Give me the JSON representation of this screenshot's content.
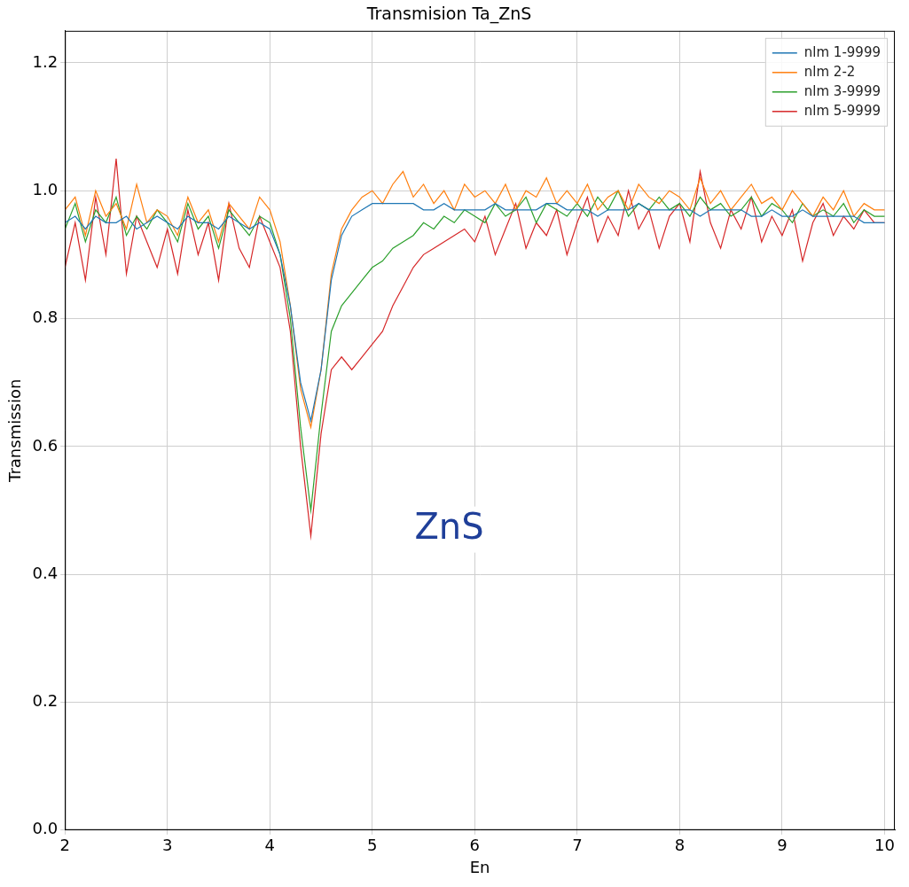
{
  "chart_data": {
    "type": "line",
    "title": "Transmision Ta_ZnS",
    "x_label": "En",
    "y_label": "Transmission",
    "xlim": [
      2,
      10.1
    ],
    "xticks": [
      2,
      3,
      4,
      5,
      6,
      7,
      8,
      9,
      10
    ],
    "ylim": [
      0,
      1.25
    ],
    "yticks": [
      {
        "value": 0,
        "label": "0.0"
      },
      0.2,
      0.4,
      0.6,
      0.8,
      {
        "value": 1,
        "label": "1.0"
      },
      1.2
    ],
    "grid": true,
    "legend": "upper right",
    "annotations": [
      {
        "text": "ZnS",
        "x": 5.75,
        "y": 0.47
      }
    ],
    "x": [
      2.0,
      2.1,
      2.2,
      2.3,
      2.4,
      2.5,
      2.6,
      2.7,
      2.8,
      2.9,
      3.0,
      3.1,
      3.2,
      3.3,
      3.4,
      3.5,
      3.6,
      3.7,
      3.8,
      3.9,
      4.0,
      4.1,
      4.2,
      4.3,
      4.4,
      4.5,
      4.6,
      4.7,
      4.8,
      4.9,
      5.0,
      5.1,
      5.2,
      5.3,
      5.4,
      5.5,
      5.6,
      5.7,
      5.8,
      5.9,
      6.0,
      6.1,
      6.2,
      6.3,
      6.4,
      6.5,
      6.6,
      6.7,
      6.8,
      6.9,
      7.0,
      7.1,
      7.2,
      7.3,
      7.4,
      7.5,
      7.6,
      7.7,
      7.8,
      7.9,
      8.0,
      8.1,
      8.2,
      8.3,
      8.4,
      8.5,
      8.6,
      8.7,
      8.8,
      8.9,
      9.0,
      9.1,
      9.2,
      9.3,
      9.4,
      9.5,
      9.6,
      9.7,
      9.8,
      9.9,
      10.0
    ],
    "series": [
      {
        "name": "nlm 1-9999",
        "color": "#1f77b4",
        "values": [
          0.95,
          0.96,
          0.94,
          0.96,
          0.95,
          0.95,
          0.96,
          0.94,
          0.95,
          0.96,
          0.95,
          0.94,
          0.96,
          0.95,
          0.95,
          0.94,
          0.96,
          0.95,
          0.94,
          0.95,
          0.94,
          0.9,
          0.82,
          0.7,
          0.64,
          0.72,
          0.86,
          0.93,
          0.96,
          0.97,
          0.98,
          0.98,
          0.98,
          0.98,
          0.98,
          0.97,
          0.97,
          0.98,
          0.97,
          0.97,
          0.97,
          0.97,
          0.98,
          0.97,
          0.97,
          0.97,
          0.97,
          0.98,
          0.98,
          0.97,
          0.97,
          0.97,
          0.96,
          0.97,
          0.97,
          0.97,
          0.98,
          0.97,
          0.97,
          0.97,
          0.97,
          0.97,
          0.96,
          0.97,
          0.97,
          0.97,
          0.97,
          0.96,
          0.96,
          0.97,
          0.96,
          0.96,
          0.97,
          0.96,
          0.96,
          0.96,
          0.96,
          0.96,
          0.95,
          0.95,
          0.95
        ]
      },
      {
        "name": "nlm 2-2",
        "color": "#ff7f0e",
        "values": [
          0.97,
          0.99,
          0.93,
          1.0,
          0.96,
          0.98,
          0.94,
          1.01,
          0.95,
          0.97,
          0.96,
          0.93,
          0.99,
          0.95,
          0.97,
          0.92,
          0.98,
          0.96,
          0.94,
          0.99,
          0.97,
          0.92,
          0.82,
          0.69,
          0.63,
          0.72,
          0.87,
          0.94,
          0.97,
          0.99,
          1.0,
          0.98,
          1.01,
          1.03,
          0.99,
          1.01,
          0.98,
          1.0,
          0.97,
          1.01,
          0.99,
          1.0,
          0.98,
          1.01,
          0.97,
          1.0,
          0.99,
          1.02,
          0.98,
          1.0,
          0.98,
          1.01,
          0.97,
          0.99,
          1.0,
          0.97,
          1.01,
          0.99,
          0.98,
          1.0,
          0.99,
          0.97,
          1.02,
          0.98,
          1.0,
          0.97,
          0.99,
          1.01,
          0.98,
          0.99,
          0.97,
          1.0,
          0.98,
          0.96,
          0.99,
          0.97,
          1.0,
          0.96,
          0.98,
          0.97,
          0.97
        ]
      },
      {
        "name": "nlm 3-9999",
        "color": "#2ca02c",
        "values": [
          0.94,
          0.98,
          0.92,
          0.97,
          0.95,
          0.99,
          0.93,
          0.96,
          0.94,
          0.97,
          0.95,
          0.92,
          0.98,
          0.94,
          0.96,
          0.91,
          0.97,
          0.95,
          0.93,
          0.96,
          0.95,
          0.9,
          0.8,
          0.63,
          0.5,
          0.65,
          0.78,
          0.82,
          0.84,
          0.86,
          0.88,
          0.89,
          0.91,
          0.92,
          0.93,
          0.95,
          0.94,
          0.96,
          0.95,
          0.97,
          0.96,
          0.95,
          0.98,
          0.96,
          0.97,
          0.99,
          0.95,
          0.98,
          0.97,
          0.96,
          0.98,
          0.96,
          0.99,
          0.97,
          1.0,
          0.96,
          0.98,
          0.97,
          0.99,
          0.97,
          0.98,
          0.96,
          0.99,
          0.97,
          0.98,
          0.96,
          0.97,
          0.99,
          0.96,
          0.98,
          0.97,
          0.95,
          0.98,
          0.96,
          0.97,
          0.96,
          0.98,
          0.95,
          0.97,
          0.96,
          0.96
        ]
      },
      {
        "name": "nlm 5-9999",
        "color": "#d62728",
        "values": [
          0.88,
          0.95,
          0.86,
          0.99,
          0.9,
          1.05,
          0.87,
          0.96,
          0.92,
          0.88,
          0.94,
          0.87,
          0.97,
          0.9,
          0.95,
          0.86,
          0.98,
          0.91,
          0.88,
          0.96,
          0.92,
          0.88,
          0.78,
          0.6,
          0.46,
          0.62,
          0.72,
          0.74,
          0.72,
          0.74,
          0.76,
          0.78,
          0.82,
          0.85,
          0.88,
          0.9,
          0.91,
          0.92,
          0.93,
          0.94,
          0.92,
          0.96,
          0.9,
          0.94,
          0.98,
          0.91,
          0.95,
          0.93,
          0.97,
          0.9,
          0.95,
          0.99,
          0.92,
          0.96,
          0.93,
          1.0,
          0.94,
          0.97,
          0.91,
          0.96,
          0.98,
          0.92,
          1.03,
          0.95,
          0.91,
          0.97,
          0.94,
          0.99,
          0.92,
          0.96,
          0.93,
          0.97,
          0.89,
          0.95,
          0.98,
          0.93,
          0.96,
          0.94,
          0.97,
          0.95,
          0.95
        ]
      }
    ]
  }
}
